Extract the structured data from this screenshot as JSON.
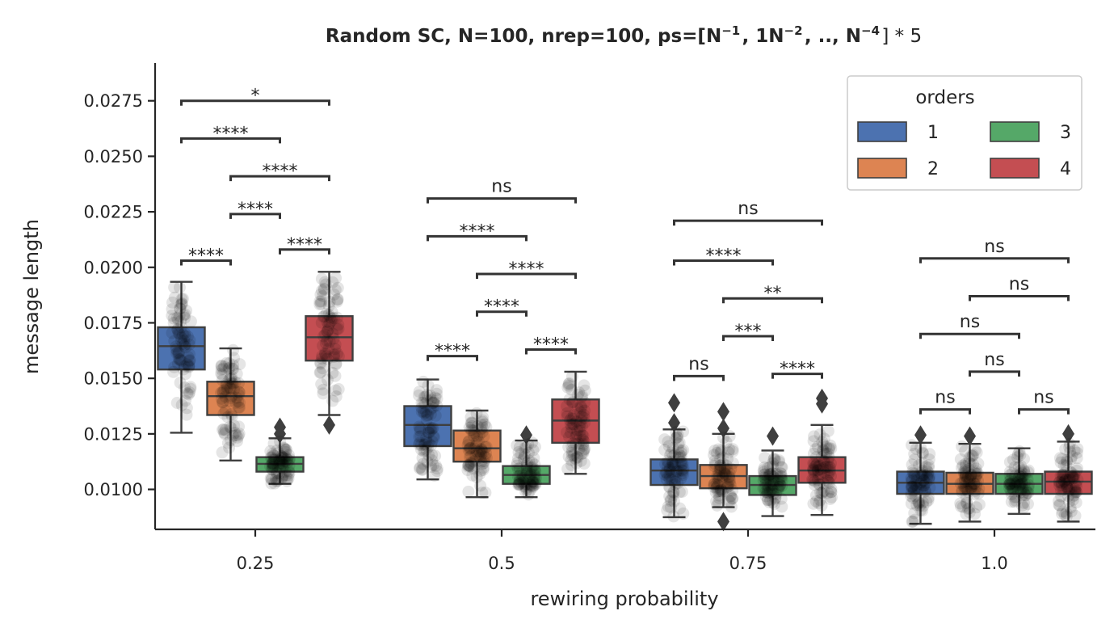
{
  "chart_data": {
    "type": "box",
    "title_text": "Random SC, N=100, nrep=100, ps=[",
    "title_math": [
      {
        "text": "N",
        "sup": "−1"
      },
      {
        "text": ", 1N",
        "sup": "−2"
      },
      {
        "text": ", ..,  N",
        "sup": "−4"
      }
    ],
    "title_suffix": "] * 5",
    "xlabel": "rewiring probability",
    "ylabel": "message length",
    "categories": [
      "0.25",
      "0.5",
      "0.75",
      "1.0"
    ],
    "yticks": [
      "0.0100",
      "0.0125",
      "0.0150",
      "0.0175",
      "0.0200",
      "0.0225",
      "0.0250",
      "0.0275"
    ],
    "ylim": [
      0.0082,
      0.0292
    ],
    "grid": false,
    "legend": {
      "title": "orders",
      "placement": "top-right",
      "entries": [
        "1",
        "2",
        "3",
        "4"
      ]
    },
    "series": [
      {
        "name": "1",
        "color": "#4c72b0",
        "boxes": [
          {
            "whislo": 0.01255,
            "q1": 0.0154,
            "med": 0.01645,
            "q3": 0.0173,
            "whishi": 0.01935,
            "outliers": []
          },
          {
            "whislo": 0.01045,
            "q1": 0.01195,
            "med": 0.0129,
            "q3": 0.01375,
            "whishi": 0.01495,
            "outliers": []
          },
          {
            "whislo": 0.00875,
            "q1": 0.0102,
            "med": 0.01085,
            "q3": 0.01135,
            "whishi": 0.0127,
            "outliers": [
              0.013,
              0.0139
            ]
          },
          {
            "whislo": 0.00845,
            "q1": 0.0098,
            "med": 0.0103,
            "q3": 0.0108,
            "whishi": 0.0121,
            "outliers": [
              0.01245
            ]
          }
        ]
      },
      {
        "name": "2",
        "color": "#dd8452",
        "boxes": [
          {
            "whislo": 0.0113,
            "q1": 0.01335,
            "med": 0.0142,
            "q3": 0.01485,
            "whishi": 0.01635,
            "outliers": []
          },
          {
            "whislo": 0.00965,
            "q1": 0.01125,
            "med": 0.01185,
            "q3": 0.01265,
            "whishi": 0.01355,
            "outliers": []
          },
          {
            "whislo": 0.0092,
            "q1": 0.01005,
            "med": 0.0106,
            "q3": 0.0111,
            "whishi": 0.0125,
            "outliers": [
              0.00855,
              0.01275,
              0.0135
            ]
          },
          {
            "whislo": 0.00855,
            "q1": 0.0098,
            "med": 0.01025,
            "q3": 0.01075,
            "whishi": 0.01205,
            "outliers": [
              0.0124
            ]
          }
        ]
      },
      {
        "name": "3",
        "color": "#55a868",
        "boxes": [
          {
            "whislo": 0.01025,
            "q1": 0.0108,
            "med": 0.01115,
            "q3": 0.01145,
            "whishi": 0.0123,
            "outliers": [
              0.0125,
              0.0128
            ]
          },
          {
            "whislo": 0.00965,
            "q1": 0.01025,
            "med": 0.01065,
            "q3": 0.01105,
            "whishi": 0.0122,
            "outliers": [
              0.01245
            ]
          },
          {
            "whislo": 0.0088,
            "q1": 0.00975,
            "med": 0.0102,
            "q3": 0.0106,
            "whishi": 0.01175,
            "outliers": [
              0.0124
            ]
          },
          {
            "whislo": 0.0089,
            "q1": 0.0098,
            "med": 0.01025,
            "q3": 0.0107,
            "whishi": 0.01185,
            "outliers": []
          }
        ]
      },
      {
        "name": "4",
        "color": "#c44e52",
        "boxes": [
          {
            "whislo": 0.01335,
            "q1": 0.0158,
            "med": 0.01685,
            "q3": 0.0178,
            "whishi": 0.0198,
            "outliers": [
              0.0129
            ]
          },
          {
            "whislo": 0.0107,
            "q1": 0.0121,
            "med": 0.0131,
            "q3": 0.01405,
            "whishi": 0.0153,
            "outliers": []
          },
          {
            "whislo": 0.00885,
            "q1": 0.0103,
            "med": 0.01085,
            "q3": 0.01145,
            "whishi": 0.0129,
            "outliers": [
              0.01385,
              0.0141
            ]
          },
          {
            "whislo": 0.00855,
            "q1": 0.0098,
            "med": 0.01035,
            "q3": 0.0108,
            "whishi": 0.01215,
            "outliers": [
              0.0125
            ]
          }
        ]
      }
    ],
    "annotations": [
      {
        "group": 0,
        "pair": [
          1,
          2
        ],
        "level": 0.0203,
        "label": "****"
      },
      {
        "group": 0,
        "pair": [
          2,
          3
        ],
        "level": 0.0224,
        "label": "****"
      },
      {
        "group": 0,
        "pair": [
          3,
          4
        ],
        "level": 0.0208,
        "label": "****"
      },
      {
        "group": 0,
        "pair": [
          2,
          4
        ],
        "level": 0.0241,
        "label": "****"
      },
      {
        "group": 0,
        "pair": [
          1,
          3
        ],
        "level": 0.0258,
        "label": "****"
      },
      {
        "group": 0,
        "pair": [
          1,
          4
        ],
        "level": 0.0275,
        "label": "*"
      },
      {
        "group": 1,
        "pair": [
          1,
          2
        ],
        "level": 0.016,
        "label": "****"
      },
      {
        "group": 1,
        "pair": [
          2,
          3
        ],
        "level": 0.018,
        "label": "****"
      },
      {
        "group": 1,
        "pair": [
          3,
          4
        ],
        "level": 0.0163,
        "label": "****"
      },
      {
        "group": 1,
        "pair": [
          2,
          4
        ],
        "level": 0.0197,
        "label": "****"
      },
      {
        "group": 1,
        "pair": [
          1,
          3
        ],
        "level": 0.0214,
        "label": "****"
      },
      {
        "group": 1,
        "pair": [
          1,
          4
        ],
        "level": 0.0231,
        "label": "ns"
      },
      {
        "group": 2,
        "pair": [
          1,
          2
        ],
        "level": 0.0151,
        "label": "ns"
      },
      {
        "group": 2,
        "pair": [
          2,
          3
        ],
        "level": 0.0169,
        "label": "***"
      },
      {
        "group": 2,
        "pair": [
          3,
          4
        ],
        "level": 0.0152,
        "label": "****"
      },
      {
        "group": 2,
        "pair": [
          2,
          4
        ],
        "level": 0.0186,
        "label": "**"
      },
      {
        "group": 2,
        "pair": [
          1,
          3
        ],
        "level": 0.0203,
        "label": "****"
      },
      {
        "group": 2,
        "pair": [
          1,
          4
        ],
        "level": 0.0221,
        "label": "ns"
      },
      {
        "group": 3,
        "pair": [
          1,
          2
        ],
        "level": 0.0136,
        "label": "ns"
      },
      {
        "group": 3,
        "pair": [
          2,
          3
        ],
        "level": 0.0153,
        "label": "ns"
      },
      {
        "group": 3,
        "pair": [
          3,
          4
        ],
        "level": 0.0136,
        "label": "ns"
      },
      {
        "group": 3,
        "pair": [
          1,
          3
        ],
        "level": 0.017,
        "label": "ns"
      },
      {
        "group": 3,
        "pair": [
          2,
          4
        ],
        "level": 0.0187,
        "label": "ns"
      },
      {
        "group": 3,
        "pair": [
          1,
          4
        ],
        "level": 0.0204,
        "label": "ns"
      }
    ]
  }
}
